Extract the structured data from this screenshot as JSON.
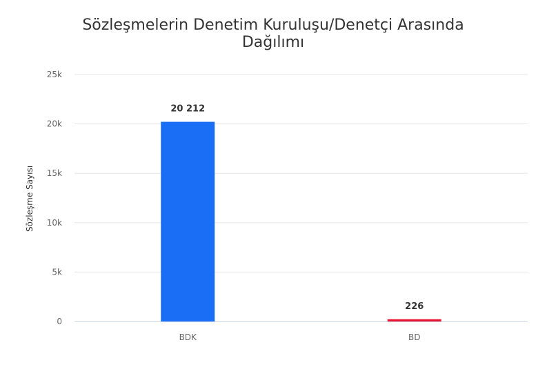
{
  "chart_data": {
    "type": "bar",
    "title": "Sözleşmelerin Denetim Kuruluşu/Denetçi Arasında\nDağılımı",
    "xlabel": "",
    "ylabel": "Sözleşme Sayısı",
    "categories": [
      "BDK",
      "BD"
    ],
    "values": [
      20212,
      226
    ],
    "data_labels": [
      "20 212",
      "226"
    ],
    "colors": [
      "#1a6ef5",
      "#e8132e"
    ],
    "ylim": [
      0,
      25000
    ],
    "yticks": [
      0,
      5000,
      10000,
      15000,
      20000,
      25000
    ],
    "ytick_labels": [
      "0",
      "5k",
      "10k",
      "15k",
      "20k",
      "25k"
    ],
    "grid": true,
    "legend": "none"
  }
}
